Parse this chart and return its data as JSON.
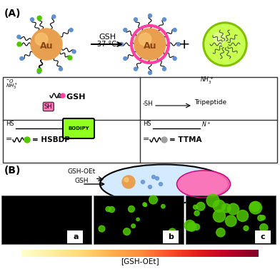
{
  "title_A": "(A)",
  "title_B": "(B)",
  "gsh_label": "GSH",
  "temp_label": "37 °C",
  "au_color": "#E8A050",
  "au_text": "Au",
  "au_text_color": "#8B4513",
  "green_dot_color": "#50C800",
  "blue_dot_color": "#6090D0",
  "sphere_color_light": "#C8FF50",
  "sphere_border_color": "#80C000",
  "pink_magenta": "#FF40A0",
  "gsh_box_bg": "#FFFFFF",
  "gsh_box_border": "#333333",
  "hsbdp_green_bg": "#90FF20",
  "gradient_left_color": "#FF8C00",
  "gradient_right_color": "#8B2000",
  "cell_fill": "#D0E8FF",
  "nucleus_fill": "#FF69B4",
  "label_a": "a",
  "label_b": "b",
  "label_c": "c",
  "gsh_oet_label": "GSH-OEt",
  "gsh_arrow_label": "GSH",
  "concentration_label": "[GSH-OEt]",
  "bg_black": "#000000",
  "white": "#FFFFFF"
}
